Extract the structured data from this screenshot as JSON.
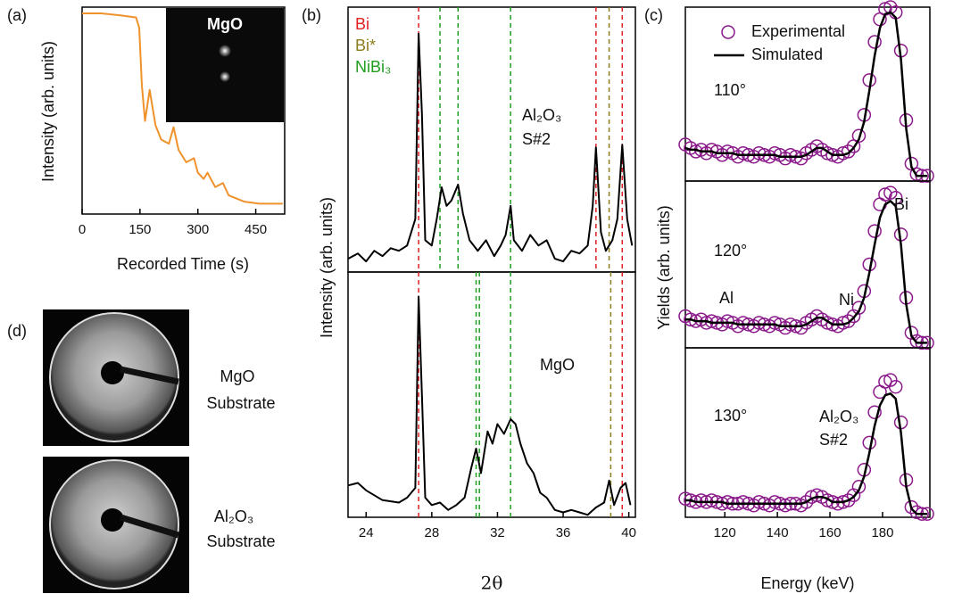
{
  "panel_labels": [
    "(a)",
    "(b)",
    "(c)",
    "(d)"
  ],
  "images": [
    {
      "label": [
        "MgO",
        "Substrate"
      ]
    },
    {
      "label": [
        "Al₂O₃",
        "Substrate"
      ]
    }
  ],
  "chart_data": [
    {
      "type": "line",
      "xlabel": "Recorded Time (s)",
      "ylabel": "Intensity (arb. units)",
      "inset_label": "MgO",
      "color": "#f0922b",
      "xlim": [
        0,
        525
      ],
      "ylim": [
        0,
        100
      ],
      "xticks": [
        0,
        150,
        300,
        450
      ],
      "x": [
        0,
        50,
        100,
        140,
        148,
        155,
        163,
        175,
        190,
        205,
        225,
        237,
        250,
        270,
        290,
        300,
        315,
        325,
        345,
        365,
        380,
        420,
        460,
        500,
        520
      ],
      "values": [
        97,
        97,
        96,
        95,
        90,
        62,
        45,
        60,
        43,
        36,
        34,
        42,
        31,
        25,
        27,
        20,
        17,
        20,
        13,
        15,
        9,
        6,
        5,
        5,
        5
      ]
    },
    {
      "type": "line",
      "ylabel": "Intensity (arb. units)",
      "color": "#000000",
      "xlim": [
        22.9,
        40.4
      ],
      "ylim": [
        0,
        100
      ],
      "legend": [
        {
          "label": "Bi",
          "color": "#e02020"
        },
        {
          "label": "Bi*",
          "color": "#8b7d1a"
        },
        {
          "label": "NiBi₃",
          "color": "#1e9e1e"
        }
      ],
      "reference_lines": [
        {
          "x": 27.2,
          "color": "#e02020"
        },
        {
          "x": 38.0,
          "color": "#e02020"
        },
        {
          "x": 39.6,
          "color": "#e02020"
        },
        {
          "x": 28.5,
          "color": "#1e9e1e"
        },
        {
          "x": 29.6,
          "color": "#1e9e1e"
        },
        {
          "x": 32.8,
          "color": "#1e9e1e"
        },
        {
          "x": 38.8,
          "color": "#8b7d1a"
        }
      ],
      "annotations": [
        "Al₂O₃",
        "S#2"
      ],
      "x": [
        22.9,
        23.5,
        24,
        24.5,
        25,
        25.5,
        26,
        26.5,
        27.0,
        27.2,
        27.4,
        27.6,
        28,
        28.3,
        28.6,
        28.9,
        29.2,
        29.6,
        29.9,
        30.3,
        30.8,
        31.3,
        31.8,
        32.2,
        32.5,
        32.8,
        33.0,
        33.5,
        34,
        34.5,
        35,
        35.5,
        36,
        36.5,
        37,
        37.5,
        37.8,
        38.0,
        38.3,
        38.6,
        39,
        39.3,
        39.6,
        39.9,
        40.2
      ],
      "values": [
        5,
        7,
        4,
        8,
        6,
        9,
        8,
        10,
        20,
        90,
        60,
        12,
        10,
        20,
        32,
        25,
        27,
        33,
        22,
        12,
        8,
        12,
        6,
        10,
        14,
        25,
        12,
        8,
        14,
        10,
        12,
        5,
        4,
        8,
        7,
        10,
        25,
        47,
        15,
        8,
        12,
        20,
        48,
        20,
        10
      ]
    },
    {
      "type": "line",
      "xlabel": "2θ",
      "color": "#000000",
      "xlim": [
        22.9,
        40.4
      ],
      "ylim": [
        0,
        100
      ],
      "xticks": [
        24,
        28,
        32,
        36,
        40
      ],
      "reference_lines": [
        {
          "x": 27.2,
          "color": "#e02020"
        },
        {
          "x": 39.6,
          "color": "#e02020"
        },
        {
          "x": 30.7,
          "color": "#1e9e1e"
        },
        {
          "x": 30.9,
          "color": "#1e9e1e"
        },
        {
          "x": 32.8,
          "color": "#1e9e1e"
        },
        {
          "x": 38.9,
          "color": "#8b7d1a"
        }
      ],
      "annotations": [
        "MgO"
      ],
      "x": [
        22.9,
        23.5,
        24,
        25,
        26,
        26.5,
        27.0,
        27.2,
        27.4,
        27.6,
        28,
        28.5,
        29,
        29.5,
        30,
        30.4,
        30.7,
        31,
        31.4,
        31.7,
        32,
        32.4,
        32.8,
        33.1,
        33.4,
        33.8,
        34.2,
        34.6,
        35,
        35.5,
        36,
        36.5,
        37,
        37.5,
        38,
        38.5,
        38.8,
        39.1,
        39.5,
        39.8,
        40.1
      ],
      "values": [
        13,
        14,
        11,
        7,
        6,
        8,
        12,
        90,
        50,
        8,
        5,
        6,
        3,
        5,
        8,
        20,
        28,
        18,
        35,
        30,
        38,
        34,
        40,
        38,
        30,
        22,
        18,
        10,
        8,
        3,
        2,
        3,
        2,
        1,
        4,
        6,
        15,
        5,
        12,
        14,
        5
      ]
    },
    {
      "type": "scatter",
      "xlim": [
        105,
        198
      ],
      "ylim": [
        0,
        100
      ],
      "annotations": [
        "110°"
      ],
      "x": [
        105,
        107,
        109,
        111,
        113,
        115,
        117,
        119,
        121,
        123,
        125,
        127,
        129,
        131,
        133,
        135,
        137,
        139,
        141,
        143,
        145,
        147,
        149,
        151,
        153,
        155,
        157,
        159,
        161,
        163,
        165,
        167,
        169,
        171,
        173,
        175,
        177,
        179,
        181,
        183,
        185,
        187,
        189,
        191,
        193,
        195,
        197
      ],
      "series": [
        {
          "name": "Experimental",
          "style": "marker",
          "color": "#8b1a8b",
          "values": [
            21,
            19,
            17,
            18,
            16,
            18,
            17,
            15,
            17,
            16,
            14,
            16,
            15,
            14,
            16,
            15,
            14,
            16,
            15,
            13,
            15,
            14,
            13,
            16,
            18,
            20,
            18,
            16,
            15,
            14,
            16,
            17,
            20,
            26,
            38,
            58,
            80,
            93,
            99,
            100,
            97,
            75,
            35,
            10,
            4,
            3,
            3
          ]
        },
        {
          "name": "Simulated",
          "style": "line",
          "color": "#000000",
          "values": [
            19,
            18,
            18,
            17,
            17,
            17,
            16,
            16,
            16,
            16,
            15,
            15,
            15,
            15,
            15,
            15,
            15,
            15,
            14,
            14,
            14,
            14,
            14,
            15,
            17,
            19,
            19,
            17,
            15,
            15,
            15,
            16,
            19,
            24,
            34,
            52,
            72,
            88,
            96,
            97,
            94,
            70,
            30,
            8,
            3,
            3,
            3
          ]
        }
      ]
    },
    {
      "type": "scatter",
      "ylabel": "Yields (arb. units)",
      "xlim": [
        105,
        198
      ],
      "ylim": [
        0,
        100
      ],
      "annotations": [
        "120°",
        "Bi",
        "Al",
        "Ni"
      ],
      "x": [
        105,
        107,
        109,
        111,
        113,
        115,
        117,
        119,
        121,
        123,
        125,
        127,
        129,
        131,
        133,
        135,
        137,
        139,
        141,
        143,
        145,
        147,
        149,
        151,
        153,
        155,
        157,
        159,
        161,
        163,
        165,
        167,
        169,
        171,
        173,
        175,
        177,
        179,
        181,
        183,
        185,
        187,
        189,
        191,
        193,
        195,
        197
      ],
      "series": [
        {
          "style": "marker",
          "color": "#8b1a8b",
          "values": [
            19,
            17,
            16,
            17,
            15,
            16,
            15,
            14,
            16,
            15,
            13,
            15,
            14,
            13,
            15,
            14,
            13,
            15,
            14,
            12,
            14,
            13,
            12,
            15,
            17,
            19,
            17,
            15,
            14,
            13,
            15,
            16,
            19,
            24,
            34,
            50,
            70,
            86,
            92,
            93,
            90,
            68,
            30,
            9,
            4,
            3,
            3
          ]
        },
        {
          "style": "line",
          "color": "#000000",
          "values": [
            17,
            17,
            16,
            16,
            16,
            15,
            15,
            15,
            15,
            15,
            14,
            14,
            14,
            14,
            14,
            14,
            14,
            14,
            13,
            13,
            13,
            13,
            13,
            14,
            16,
            18,
            18,
            16,
            14,
            14,
            14,
            15,
            18,
            22,
            30,
            45,
            62,
            78,
            86,
            88,
            85,
            62,
            26,
            7,
            3,
            3,
            3
          ]
        }
      ]
    },
    {
      "type": "scatter",
      "xlabel": "Energy (keV)",
      "xlim": [
        105,
        198
      ],
      "ylim": [
        0,
        100
      ],
      "xticks": [
        120,
        140,
        160,
        180
      ],
      "annotations": [
        "130°",
        "Al₂O₃",
        "S#2"
      ],
      "x": [
        105,
        107,
        109,
        111,
        113,
        115,
        117,
        119,
        121,
        123,
        125,
        127,
        129,
        131,
        133,
        135,
        137,
        139,
        141,
        143,
        145,
        147,
        149,
        151,
        153,
        155,
        157,
        159,
        161,
        163,
        165,
        167,
        169,
        171,
        173,
        175,
        177,
        179,
        181,
        183,
        185,
        187,
        189,
        191,
        193,
        195,
        197
      ],
      "series": [
        {
          "style": "marker",
          "color": "#8b1a8b",
          "values": [
            11,
            10,
            9,
            10,
            9,
            10,
            9,
            8,
            9,
            8,
            8,
            9,
            8,
            7,
            9,
            8,
            7,
            9,
            8,
            7,
            8,
            8,
            7,
            9,
            12,
            13,
            12,
            10,
            9,
            8,
            9,
            10,
            13,
            18,
            28,
            44,
            62,
            74,
            80,
            81,
            77,
            56,
            22,
            6,
            3,
            2,
            2
          ]
        },
        {
          "style": "line",
          "color": "#000000",
          "values": [
            10,
            10,
            9,
            9,
            9,
            9,
            9,
            9,
            8,
            8,
            8,
            8,
            8,
            8,
            8,
            8,
            8,
            8,
            8,
            8,
            8,
            8,
            8,
            9,
            11,
            12,
            12,
            11,
            9,
            9,
            9,
            10,
            12,
            16,
            24,
            38,
            54,
            66,
            72,
            73,
            70,
            50,
            18,
            5,
            2,
            2,
            2
          ]
        }
      ]
    }
  ]
}
